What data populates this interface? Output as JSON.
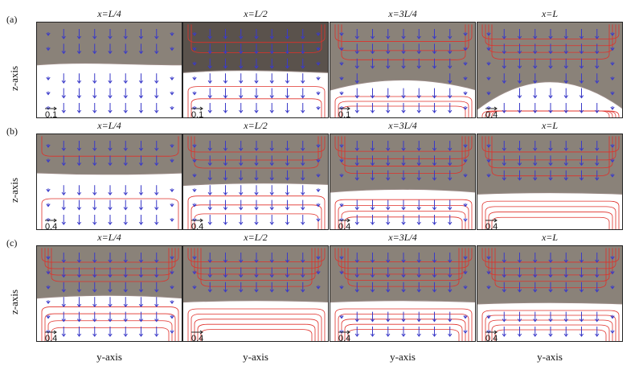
{
  "rows": [
    {
      "label": "(a)",
      "axis": "z-axis",
      "panels": [
        {
          "title": "x=L/4",
          "scale": "0.1",
          "fill": "#8a8279",
          "interface": [
            0.44,
            0.4,
            0.44,
            0.44
          ],
          "contours": 0,
          "arrows_in_lower": true
        },
        {
          "title": "x=L/2",
          "scale": "0.1",
          "fill": "#5a524c",
          "interface": [
            0.52,
            0.48,
            0.5,
            0.52
          ],
          "contours": 2,
          "arrows_in_lower": true
        },
        {
          "title": "x=3L/4",
          "scale": "0.1",
          "fill": "#8a8279",
          "interface": [
            0.7,
            0.56,
            0.56,
            0.7
          ],
          "contours": 3,
          "arrows_in_lower": true
        },
        {
          "title": "x=L",
          "scale": "0.4",
          "fill": "#8a8279",
          "interface": [
            0.9,
            0.52,
            0.52,
            0.9
          ],
          "contours": 4,
          "arrows_in_lower": true
        }
      ]
    },
    {
      "label": "(b)",
      "axis": "z-axis",
      "panels": [
        {
          "title": "x=L/4",
          "scale": "0.4",
          "fill": "#8a8279",
          "interface": [
            0.4,
            0.42,
            0.42,
            0.4
          ],
          "contours": 1,
          "arrows_in_lower": true
        },
        {
          "title": "x=L/2",
          "scale": "0.4",
          "fill": "#8a8279",
          "interface": [
            0.53,
            0.5,
            0.5,
            0.52
          ],
          "contours": 3,
          "arrows_in_lower": true
        },
        {
          "title": "x=3L/4",
          "scale": "0.4",
          "fill": "#8a8279",
          "interface": [
            0.6,
            0.56,
            0.56,
            0.6
          ],
          "contours": 4,
          "arrows_in_lower": true
        },
        {
          "title": "x=L",
          "scale": "0.4",
          "fill": "#8a8279",
          "interface": [
            0.62,
            0.6,
            0.6,
            0.62
          ],
          "contours": 4,
          "arrows_in_lower": false
        }
      ]
    },
    {
      "label": "(c)",
      "axis": "z-axis",
      "panels": [
        {
          "title": "x=L/4",
          "scale": "0.4",
          "fill": "#8a8279",
          "interface": [
            0.54,
            0.5,
            0.5,
            0.54
          ],
          "contours": 4,
          "arrows_in_lower": true
        },
        {
          "title": "x=L/2",
          "scale": "0.4",
          "fill": "#8a8279",
          "interface": [
            0.58,
            0.56,
            0.56,
            0.58
          ],
          "contours": 5,
          "arrows_in_lower": false
        },
        {
          "title": "x=3L/4",
          "scale": "0.4",
          "fill": "#8a8279",
          "interface": [
            0.58,
            0.56,
            0.56,
            0.58
          ],
          "contours": 5,
          "arrows_in_lower": true
        },
        {
          "title": "x=L",
          "scale": "0.4",
          "fill": "#8a8279",
          "interface": [
            0.6,
            0.58,
            0.58,
            0.6
          ],
          "contours": 5,
          "arrows_in_lower": true
        }
      ]
    }
  ],
  "column_axis_label": "y-axis",
  "colors": {
    "streamline": "#e0302a",
    "arrow": "#3a3ac8",
    "lower_fluid": "#ffffff"
  }
}
